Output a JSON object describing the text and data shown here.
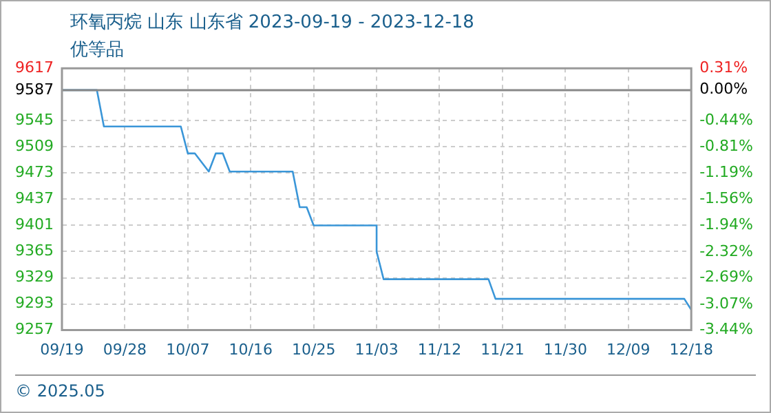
{
  "chart_data": {
    "type": "line",
    "title": "环氧丙烷 山东 山东省 2023-09-19 - 2023-12-18",
    "subtitle": "优等品",
    "annotations": [
      "© 2025.05"
    ],
    "x": [
      "2023-09-19",
      "2023-09-24",
      "2023-09-25",
      "2023-10-06",
      "2023-10-07",
      "2023-10-08",
      "2023-10-10",
      "2023-10-11",
      "2023-10-12",
      "2023-10-13",
      "2023-10-22",
      "2023-10-23",
      "2023-10-24",
      "2023-10-25",
      "2023-11-03",
      "2023-11-03",
      "2023-11-04",
      "2023-11-19",
      "2023-11-20",
      "2023-12-17",
      "2023-12-18"
    ],
    "series": [
      {
        "color": "#3a96d8",
        "values": [
          9587,
          9587,
          9537,
          9537,
          9500,
          9500,
          9475,
          9500,
          9500,
          9475,
          9475,
          9426,
          9426,
          9401,
          9401,
          9365,
          9327,
          9327,
          9300,
          9300,
          9285
        ]
      }
    ],
    "xlim": [
      "2023-09-19",
      "2023-12-18"
    ],
    "xticks": [
      {
        "value": "2023-09-19",
        "label": "09/19"
      },
      {
        "value": "2023-09-28",
        "label": "09/28"
      },
      {
        "value": "2023-10-07",
        "label": "10/07"
      },
      {
        "value": "2023-10-16",
        "label": "10/16"
      },
      {
        "value": "2023-10-25",
        "label": "10/25"
      },
      {
        "value": "2023-11-03",
        "label": "11/03"
      },
      {
        "value": "2023-11-12",
        "label": "11/12"
      },
      {
        "value": "2023-11-21",
        "label": "11/21"
      },
      {
        "value": "2023-11-30",
        "label": "11/30"
      },
      {
        "value": "2023-12-09",
        "label": "12/09"
      },
      {
        "value": "2023-12-18",
        "label": "12/18"
      }
    ],
    "ylim": [
      9257,
      9617
    ],
    "yticks": [
      9257,
      9293,
      9329,
      9365,
      9401,
      9437,
      9473,
      9509,
      9545,
      9587,
      9617
    ],
    "y2lim": [
      -3.44,
      0.31
    ],
    "y2ticks": [
      {
        "value": -3.44,
        "label": "-3.44%"
      },
      {
        "value": -3.07,
        "label": "-3.07%"
      },
      {
        "value": -2.69,
        "label": "-2.69%"
      },
      {
        "value": -2.32,
        "label": "-2.32%"
      },
      {
        "value": -1.94,
        "label": "-1.94%"
      },
      {
        "value": -1.56,
        "label": "-1.56%"
      },
      {
        "value": -1.19,
        "label": "-1.19%"
      },
      {
        "value": -0.81,
        "label": "-0.81%"
      },
      {
        "value": -0.44,
        "label": "-0.44%"
      },
      {
        "value": 0,
        "label": "0.00%"
      },
      {
        "value": 0.31,
        "label": "0.31%"
      }
    ],
    "ref_lines": [
      {
        "axis": "y",
        "value": 9587,
        "color": "#888888"
      }
    ],
    "grid": true,
    "legend": false,
    "marker": "none",
    "line_style": "solid"
  }
}
